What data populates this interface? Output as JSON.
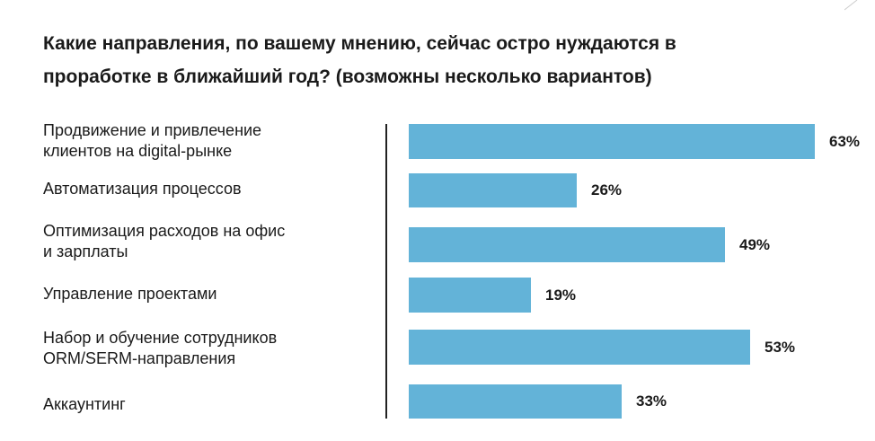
{
  "title_lines": [
    "Какие направления, по вашему мнению, сейчас остро нуждаются в",
    "проработке в ближайший год? (возможны несколько вариантов)"
  ],
  "chart_data": {
    "type": "bar",
    "orientation": "horizontal",
    "title": "Какие направления, по вашему мнению, сейчас остро нуждаются в проработке в ближайший год? (возможны несколько вариантов)",
    "categories": [
      [
        "Продвижение и привлечение",
        "клиентов на digital-рынке"
      ],
      [
        "Автоматизация процессов"
      ],
      [
        "Оптимизация расходов на офис",
        "и зарплаты"
      ],
      [
        "Управление проектами"
      ],
      [
        "Набор и обучение сотрудников",
        "ORM/SERM-направления"
      ],
      [
        "Аккаунтинг"
      ]
    ],
    "values": [
      63,
      26,
      49,
      19,
      53,
      33
    ],
    "value_labels": [
      "63%",
      "26%",
      "49%",
      "19%",
      "53%",
      "33%"
    ],
    "unit": "%",
    "xlim": [
      0,
      63
    ],
    "grid": false,
    "legend": "none",
    "bar_color": "#63b3d8"
  }
}
